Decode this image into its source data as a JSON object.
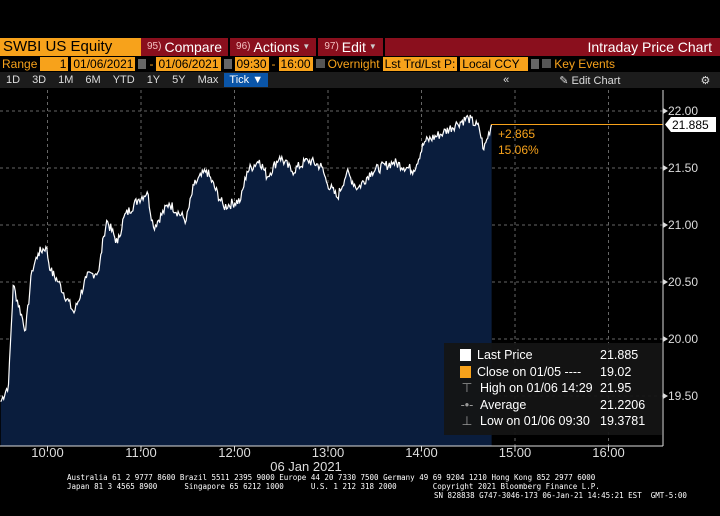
{
  "header": {
    "ticker": "SWBI US Equity",
    "menus": [
      {
        "num": "95)",
        "label": "Compare",
        "caret": false
      },
      {
        "num": "96)",
        "label": "Actions",
        "caret": true
      },
      {
        "num": "97)",
        "label": "Edit",
        "caret": true
      }
    ],
    "title": "Intraday Price Chart"
  },
  "controls": {
    "range_label": "Range",
    "range_value": "1",
    "start_date": "01/06/2021",
    "end_date": "01/06/2021",
    "start_time": "09:30",
    "end_time": "16:00",
    "overnight": "Overnight",
    "price_type": "Lst Trd/Lst P:",
    "currency": "Local CCY",
    "key_events": "Key Events"
  },
  "periods": [
    "1D",
    "3D",
    "1M",
    "6M",
    "YTD",
    "1Y",
    "5Y",
    "Max"
  ],
  "tick_label": "Tick ▼",
  "collapse": "«",
  "edit_chart": "Edit Chart",
  "chart_data": {
    "type": "area",
    "title": "Intraday Price Chart",
    "xlabel": "06 Jan 2021",
    "ylabel": "",
    "ylim": [
      19.07,
      22.03
    ],
    "yticks": [
      "22.00",
      "21.50",
      "21.00",
      "20.50",
      "20.00",
      "19.50"
    ],
    "xticks": [
      "10:00",
      "11:00",
      "12:00",
      "13:00",
      "14:00",
      "15:00",
      "16:00"
    ],
    "series": [
      {
        "name": "Last Price",
        "x_minutes_since_0930": [
          0,
          5,
          8,
          16,
          20,
          24,
          29,
          32,
          37,
          47,
          55,
          63,
          66,
          68,
          75,
          79,
          88,
          94,
          98,
          108,
          119,
          124,
          132,
          143,
          154,
          158,
          166,
          171,
          179,
          187,
          197,
          206,
          209,
          216,
          222,
          229,
          238,
          252,
          265,
          272,
          284,
          293,
          300,
          307,
          310,
          315
        ],
        "values": [
          19.45,
          19.6,
          20.47,
          20.08,
          20.6,
          20.75,
          20.81,
          20.6,
          20.5,
          20.23,
          20.54,
          20.6,
          20.9,
          21.04,
          20.84,
          21.07,
          21.22,
          21.29,
          20.98,
          21.19,
          21.04,
          21.35,
          21.48,
          21.16,
          21.22,
          21.47,
          21.57,
          21.42,
          21.6,
          21.47,
          21.57,
          21.51,
          21.38,
          21.24,
          21.46,
          21.32,
          21.47,
          21.55,
          21.48,
          21.73,
          21.81,
          21.89,
          21.94,
          21.85,
          21.66,
          21.885
        ]
      }
    ],
    "last_price": "21.885",
    "change": "+2.865",
    "change_pct": "15.06%",
    "legend": [
      {
        "label": "Last Price",
        "value": "21.885"
      },
      {
        "label": "Close on 01/05 ----",
        "value": "19.02"
      },
      {
        "label": "High on 01/06 14:29",
        "value": "21.95"
      },
      {
        "label": "Average",
        "value": "21.2206"
      },
      {
        "label": "Low on 01/06 09:30",
        "value": "19.3781"
      }
    ]
  },
  "colors": {
    "fill": "#0a1d3d",
    "line": "#ffffff",
    "accent": "#f7a21b",
    "header": "#8a0f1d"
  },
  "footer": {
    "line1": "Australia 61 2 9777 8600 Brazil 5511 2395 9000 Europe 44 20 7330 7500 Germany 49 69 9204 1210 Hong Kong 852 2977 6000",
    "line2": "Japan 81 3 4565 8900      Singapore 65 6212 1000      U.S. 1 212 318 2000        Copyright 2021 Bloomberg Finance L.P.",
    "line3": "SN 828838 G747-3046-173 06-Jan-21 14:45:21 EST  GMT-5:00"
  }
}
